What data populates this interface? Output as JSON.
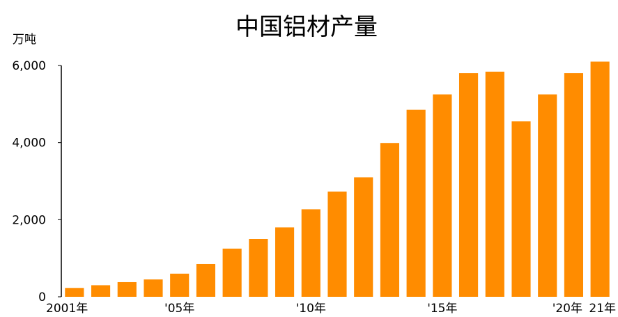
{
  "chart_data": {
    "type": "bar",
    "title": "中国铝材产量",
    "ylabel": "万吨",
    "xlabel": "",
    "ylim": [
      0,
      6000
    ],
    "yticks": [
      0,
      2000,
      4000,
      6000
    ],
    "ytick_labels": [
      "0",
      "2,000",
      "4,000",
      "6,000"
    ],
    "bar_color": "#FF8C00",
    "categories": [
      "2001",
      "2002",
      "2003",
      "2004",
      "2005",
      "2006",
      "2007",
      "2008",
      "2009",
      "2010",
      "2011",
      "2012",
      "2013",
      "2014",
      "2015",
      "2016",
      "2017",
      "2018",
      "2019",
      "2020",
      "2021"
    ],
    "values": [
      230,
      300,
      380,
      450,
      600,
      850,
      1250,
      1500,
      1800,
      2270,
      2730,
      3100,
      3990,
      4850,
      5250,
      5800,
      5840,
      4550,
      5250,
      5800,
      6100
    ],
    "x_tick_labels": [
      {
        "index": 0,
        "label": "2001年"
      },
      {
        "index": 4,
        "label": "'05年"
      },
      {
        "index": 9,
        "label": "'10年"
      },
      {
        "index": 14,
        "label": "'15年"
      },
      {
        "index": 19,
        "label": "'20年"
      },
      {
        "index": 20,
        "label": "21年"
      }
    ],
    "grid": false
  }
}
